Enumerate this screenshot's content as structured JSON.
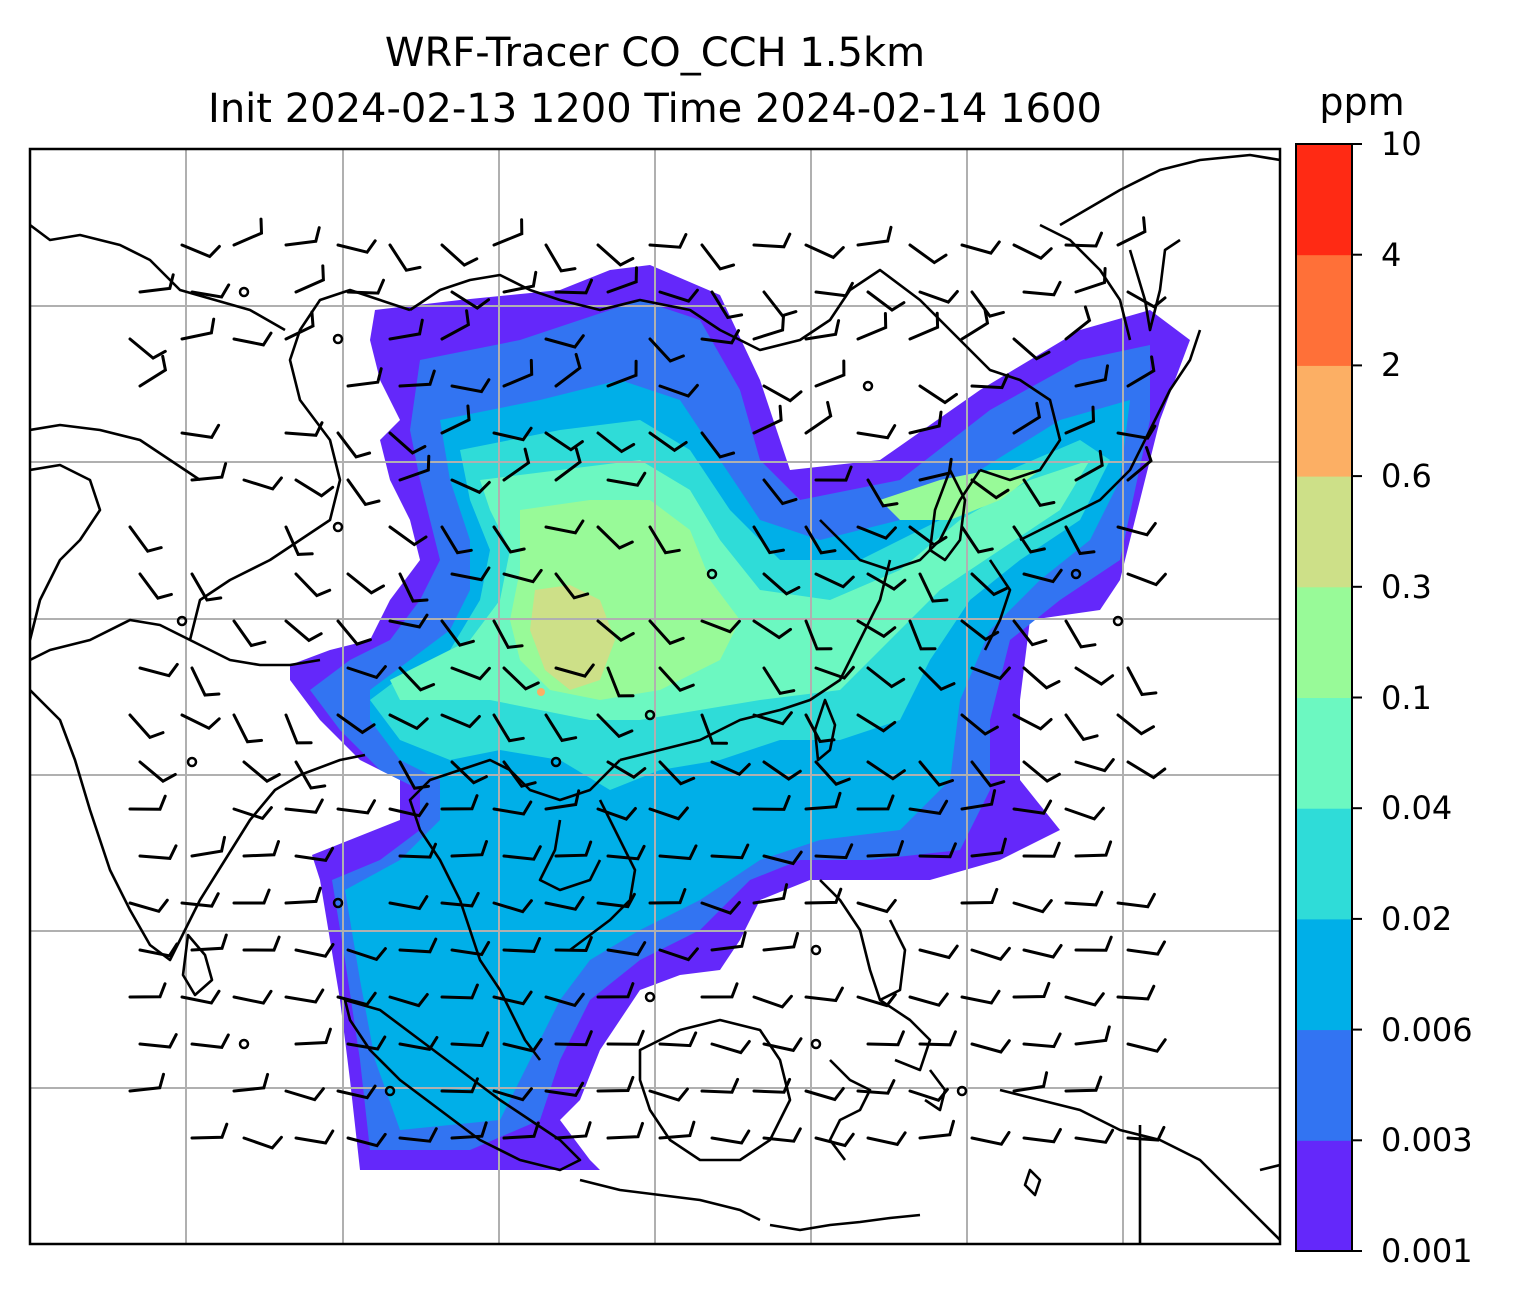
{
  "title_line1": "WRF-Tracer CO_CCH 1.5km",
  "title_line2": "Init 2024-02-13 1200 Time 2024-02-14 1600",
  "colorbar": {
    "unit": "ppm",
    "levels": [
      "0.001",
      "0.003",
      "0.006",
      "0.02",
      "0.04",
      "0.1",
      "0.3",
      "0.6",
      "2",
      "4",
      "10"
    ],
    "colors": [
      "#6428fa",
      "#3274f2",
      "#00afe8",
      "#2fdcd8",
      "#6cf8c1",
      "#98fa98",
      "#cde088",
      "#fcaf64",
      "#ff7038",
      "#ff2a14"
    ]
  },
  "map": {
    "region": "South and East Asia, Maritime Continent",
    "gridlines": true,
    "coastline_color": "#000000",
    "gridline_color": "#b0b0b0",
    "wind_barbs": true
  }
}
